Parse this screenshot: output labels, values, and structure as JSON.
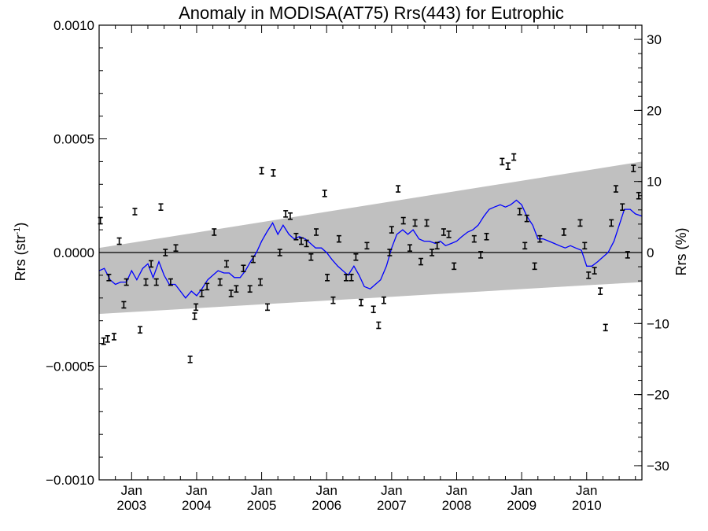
{
  "chart_data": {
    "type": "scatter",
    "title": "Anomaly in MODISA(AT75) Rrs(443) for Eutrophic",
    "ylabel_left": "Rrs (str",
    "ylabel_left_sup": "-1",
    "ylabel_left_close": ")",
    "ylabel_right": "Rrs (%)",
    "ylim_left": [
      -0.001,
      0.001
    ],
    "ylim_right": [
      -32,
      32
    ],
    "xlim": [
      2002.5,
      2010.85
    ],
    "left_ticks": [
      {
        "value": 0.001,
        "label": "0.0010"
      },
      {
        "value": 0.0005,
        "label": "0.0005"
      },
      {
        "value": 0.0,
        "label": "0.0000"
      },
      {
        "value": -0.0005,
        "label": "−0.0005"
      },
      {
        "value": -0.001,
        "label": "−0.0010"
      }
    ],
    "right_ticks": [
      {
        "value": 30,
        "label": "30"
      },
      {
        "value": 20,
        "label": "20"
      },
      {
        "value": 10,
        "label": "10"
      },
      {
        "value": 0,
        "label": "0"
      },
      {
        "value": -10,
        "label": "−10"
      },
      {
        "value": -20,
        "label": "−20"
      },
      {
        "value": -30,
        "label": "−30"
      }
    ],
    "x_ticks": [
      {
        "value": 2003.0,
        "month": "Jan",
        "year": "2003"
      },
      {
        "value": 2004.0,
        "month": "Jan",
        "year": "2004"
      },
      {
        "value": 2005.0,
        "month": "Jan",
        "year": "2005"
      },
      {
        "value": 2006.0,
        "month": "Jan",
        "year": "2006"
      },
      {
        "value": 2007.0,
        "month": "Jan",
        "year": "2007"
      },
      {
        "value": 2008.0,
        "month": "Jan",
        "year": "2008"
      },
      {
        "value": 2009.0,
        "month": "Jan",
        "year": "2009"
      },
      {
        "value": 2010.0,
        "month": "Jan",
        "year": "2010"
      }
    ],
    "confidence_band": {
      "x": [
        2002.5,
        2010.85
      ],
      "upper": [
        2e-05,
        0.0004
      ],
      "lower": [
        -0.00027,
        -0.00013
      ],
      "color": "#c0c0c0"
    },
    "zero_line": 0.0,
    "points": [
      {
        "x": 2002.52,
        "y": 0.00014
      },
      {
        "x": 2002.57,
        "y": -0.00039
      },
      {
        "x": 2002.63,
        "y": -0.00038
      },
      {
        "x": 2002.65,
        "y": -0.00011
      },
      {
        "x": 2002.73,
        "y": -0.00037
      },
      {
        "x": 2002.81,
        "y": 5e-05
      },
      {
        "x": 2002.88,
        "y": -0.00023
      },
      {
        "x": 2002.92,
        "y": -0.00013
      },
      {
        "x": 2003.05,
        "y": 0.00018
      },
      {
        "x": 2003.13,
        "y": -0.00034
      },
      {
        "x": 2003.22,
        "y": -0.00013
      },
      {
        "x": 2003.3,
        "y": -5e-05
      },
      {
        "x": 2003.38,
        "y": -0.00013
      },
      {
        "x": 2003.45,
        "y": 0.0002
      },
      {
        "x": 2003.52,
        "y": 0.0
      },
      {
        "x": 2003.6,
        "y": -0.00013
      },
      {
        "x": 2003.68,
        "y": 2e-05
      },
      {
        "x": 2003.9,
        "y": -0.00047
      },
      {
        "x": 2003.97,
        "y": -0.00028
      },
      {
        "x": 2003.99,
        "y": -0.00024
      },
      {
        "x": 2004.08,
        "y": -0.00018
      },
      {
        "x": 2004.16,
        "y": -0.00015
      },
      {
        "x": 2004.27,
        "y": 9e-05
      },
      {
        "x": 2004.36,
        "y": -0.00013
      },
      {
        "x": 2004.46,
        "y": -5e-05
      },
      {
        "x": 2004.53,
        "y": -0.00018
      },
      {
        "x": 2004.61,
        "y": -0.00016
      },
      {
        "x": 2004.72,
        "y": -7e-05
      },
      {
        "x": 2004.82,
        "y": -0.00016
      },
      {
        "x": 2004.87,
        "y": -3e-05
      },
      {
        "x": 2004.98,
        "y": -0.00013
      },
      {
        "x": 2005.0,
        "y": 0.00036
      },
      {
        "x": 2005.09,
        "y": -0.00024
      },
      {
        "x": 2005.18,
        "y": 0.00035
      },
      {
        "x": 2005.28,
        "y": 0.0
      },
      {
        "x": 2005.37,
        "y": 0.00017
      },
      {
        "x": 2005.44,
        "y": 0.00016
      },
      {
        "x": 2005.53,
        "y": 7e-05
      },
      {
        "x": 2005.61,
        "y": 5e-05
      },
      {
        "x": 2005.69,
        "y": 4e-05
      },
      {
        "x": 2005.76,
        "y": -2e-05
      },
      {
        "x": 2005.84,
        "y": 9e-05
      },
      {
        "x": 2005.97,
        "y": 0.00026
      },
      {
        "x": 2006.01,
        "y": -0.00011
      },
      {
        "x": 2006.1,
        "y": -0.00021
      },
      {
        "x": 2006.19,
        "y": 6e-05
      },
      {
        "x": 2006.3,
        "y": -0.00011
      },
      {
        "x": 2006.38,
        "y": -0.00011
      },
      {
        "x": 2006.45,
        "y": -2e-05
      },
      {
        "x": 2006.53,
        "y": -0.00022
      },
      {
        "x": 2006.62,
        "y": 3e-05
      },
      {
        "x": 2006.72,
        "y": -0.00025
      },
      {
        "x": 2006.8,
        "y": -0.00032
      },
      {
        "x": 2006.88,
        "y": -0.00021
      },
      {
        "x": 2006.97,
        "y": 0.0
      },
      {
        "x": 2007.0,
        "y": 0.0001
      },
      {
        "x": 2007.1,
        "y": 0.00028
      },
      {
        "x": 2007.18,
        "y": 0.00014
      },
      {
        "x": 2007.28,
        "y": 2e-05
      },
      {
        "x": 2007.36,
        "y": 0.00013
      },
      {
        "x": 2007.45,
        "y": -4e-05
      },
      {
        "x": 2007.54,
        "y": 0.00013
      },
      {
        "x": 2007.62,
        "y": 0.0
      },
      {
        "x": 2007.7,
        "y": 3e-05
      },
      {
        "x": 2007.8,
        "y": 9e-05
      },
      {
        "x": 2007.88,
        "y": 8e-05
      },
      {
        "x": 2007.96,
        "y": -6e-05
      },
      {
        "x": 2008.27,
        "y": 6e-05
      },
      {
        "x": 2008.37,
        "y": -1e-05
      },
      {
        "x": 2008.46,
        "y": 7e-05
      },
      {
        "x": 2008.7,
        "y": 0.0004
      },
      {
        "x": 2008.79,
        "y": 0.00038
      },
      {
        "x": 2008.88,
        "y": 0.00042
      },
      {
        "x": 2008.97,
        "y": 0.00018
      },
      {
        "x": 2009.05,
        "y": 3e-05
      },
      {
        "x": 2009.08,
        "y": 0.00015
      },
      {
        "x": 2009.2,
        "y": -6e-05
      },
      {
        "x": 2009.28,
        "y": 6e-05
      },
      {
        "x": 2009.65,
        "y": 9e-05
      },
      {
        "x": 2009.9,
        "y": 0.00013
      },
      {
        "x": 2009.97,
        "y": 3e-05
      },
      {
        "x": 2010.03,
        "y": -0.0001
      },
      {
        "x": 2010.12,
        "y": -8e-05
      },
      {
        "x": 2010.21,
        "y": -0.00017
      },
      {
        "x": 2010.29,
        "y": -0.00033
      },
      {
        "x": 2010.38,
        "y": 0.00013
      },
      {
        "x": 2010.45,
        "y": 0.00028
      },
      {
        "x": 2010.55,
        "y": 0.0002
      },
      {
        "x": 2010.63,
        "y": -1e-05
      },
      {
        "x": 2010.72,
        "y": 0.00037
      },
      {
        "x": 2010.8,
        "y": 0.00025
      }
    ],
    "line_series": {
      "color": "#0000ff",
      "x": [
        2002.5,
        2002.58,
        2002.67,
        2002.75,
        2002.83,
        2002.92,
        2003.0,
        2003.08,
        2003.17,
        2003.25,
        2003.33,
        2003.42,
        2003.5,
        2003.58,
        2003.67,
        2003.75,
        2003.83,
        2003.92,
        2004.0,
        2004.08,
        2004.17,
        2004.25,
        2004.33,
        2004.42,
        2004.5,
        2004.58,
        2004.67,
        2004.75,
        2004.83,
        2004.92,
        2005.0,
        2005.08,
        2005.17,
        2005.25,
        2005.33,
        2005.42,
        2005.5,
        2005.58,
        2005.67,
        2005.75,
        2005.83,
        2005.92,
        2006.0,
        2006.08,
        2006.17,
        2006.25,
        2006.33,
        2006.42,
        2006.5,
        2006.58,
        2006.67,
        2006.75,
        2006.83,
        2006.92,
        2007.0,
        2007.08,
        2007.17,
        2007.25,
        2007.33,
        2007.42,
        2007.5,
        2007.58,
        2007.67,
        2007.75,
        2007.83,
        2007.92,
        2008.0,
        2008.08,
        2008.17,
        2008.25,
        2008.33,
        2008.42,
        2008.5,
        2008.58,
        2008.67,
        2008.75,
        2008.83,
        2008.92,
        2009.0,
        2009.08,
        2009.17,
        2009.25,
        2009.33,
        2009.42,
        2009.5,
        2009.58,
        2009.67,
        2009.75,
        2009.83,
        2009.92,
        2010.0,
        2010.08,
        2010.17,
        2010.25,
        2010.33,
        2010.42,
        2010.5,
        2010.58,
        2010.67,
        2010.75,
        2010.85
      ],
      "y": [
        -8e-05,
        -7e-05,
        -0.00012,
        -0.00014,
        -0.00013,
        -0.00013,
        -8e-05,
        -0.00012,
        -7e-05,
        -5e-05,
        -0.00011,
        -4e-05,
        -0.0001,
        -0.00014,
        -0.00014,
        -0.00017,
        -0.0002,
        -0.00017,
        -0.00019,
        -0.00016,
        -0.00012,
        -0.0001,
        -8e-05,
        -9e-05,
        -9e-05,
        -0.00011,
        -0.00011,
        -8e-05,
        -4e-05,
        0.0,
        5e-05,
        9e-05,
        0.00013,
        8e-05,
        0.00012,
        8e-05,
        6e-05,
        7e-05,
        6e-05,
        4e-05,
        2e-05,
        2e-05,
        0.0,
        -3e-05,
        -6e-05,
        -8e-05,
        -0.0001,
        -6e-05,
        -0.0001,
        -0.00015,
        -0.00016,
        -0.00014,
        -0.00012,
        -6e-05,
        2e-05,
        8e-05,
        0.0001,
        8e-05,
        0.0001,
        6e-05,
        5e-05,
        5e-05,
        4e-05,
        5e-05,
        3e-05,
        4e-05,
        5e-05,
        7e-05,
        9e-05,
        0.0001,
        0.00012,
        0.00016,
        0.00019,
        0.0002,
        0.00021,
        0.0002,
        0.00021,
        0.00023,
        0.00021,
        0.00016,
        0.00012,
        6e-05,
        6e-05,
        5e-05,
        4e-05,
        3e-05,
        2e-05,
        3e-05,
        2e-05,
        1e-05,
        -6e-05,
        -6e-05,
        -4e-05,
        -2e-05,
        0.0,
        5e-05,
        0.00012,
        0.00019,
        0.00019,
        0.00017,
        0.00016
      ]
    }
  }
}
